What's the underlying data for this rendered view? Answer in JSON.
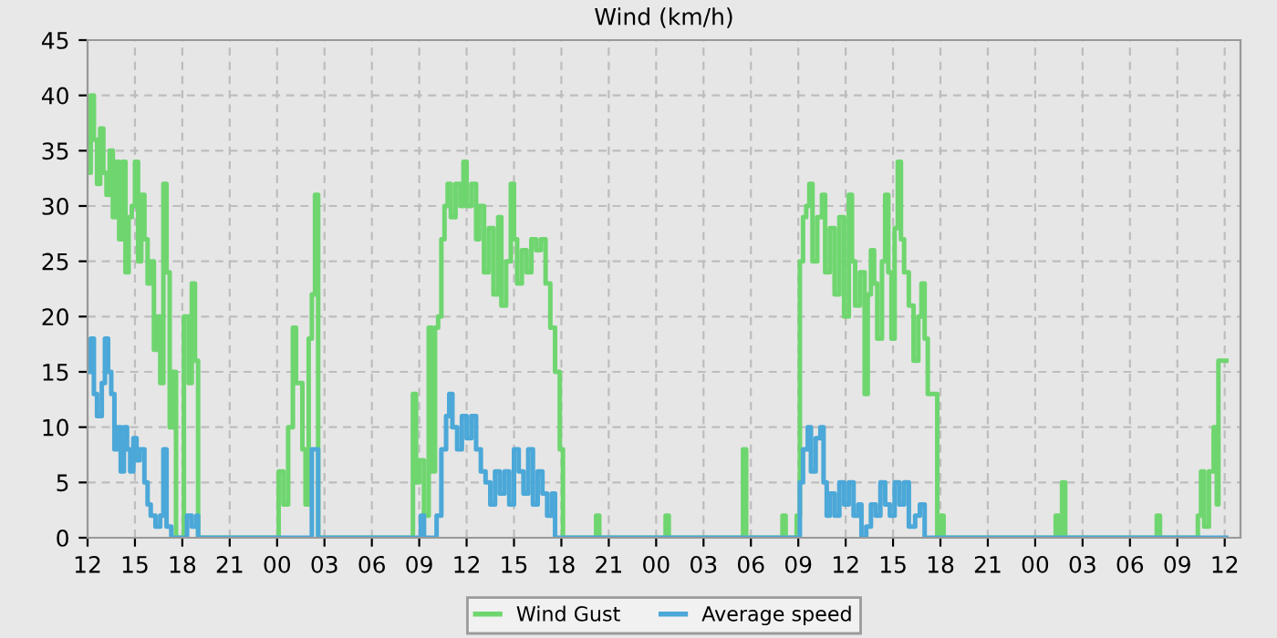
{
  "chart_data": {
    "type": "step",
    "title": "Wind (km/h)",
    "xlim": [
      12,
      85
    ],
    "ylim": [
      0,
      45
    ],
    "xticks": [
      12,
      15,
      18,
      21,
      {
        "value": 24,
        "label": "00"
      },
      {
        "value": 27,
        "label": "03"
      },
      {
        "value": 30,
        "label": "06"
      },
      {
        "value": 33,
        "label": "09"
      },
      {
        "value": 36,
        "label": "12"
      },
      {
        "value": 39,
        "label": "15"
      },
      {
        "value": 42,
        "label": "18"
      },
      {
        "value": 45,
        "label": "21"
      },
      {
        "value": 48,
        "label": "00"
      },
      {
        "value": 51,
        "label": "03"
      },
      {
        "value": 54,
        "label": "06"
      },
      {
        "value": 57,
        "label": "09"
      },
      {
        "value": 60,
        "label": "12"
      },
      {
        "value": 63,
        "label": "15"
      },
      {
        "value": 66,
        "label": "18"
      },
      {
        "value": 69,
        "label": "21"
      },
      {
        "value": 72,
        "label": "00"
      },
      {
        "value": 75,
        "label": "03"
      },
      {
        "value": 78,
        "label": "06"
      },
      {
        "value": 81,
        "label": "09"
      },
      {
        "value": 84,
        "label": "12"
      }
    ],
    "yticks": [
      0,
      5,
      10,
      15,
      20,
      25,
      30,
      35,
      40,
      45
    ],
    "grid": true,
    "legend": "bottom",
    "series": [
      {
        "name": "Wind Gust",
        "color": "#6fd66f",
        "x": [
          12,
          12.2,
          12.4,
          12.6,
          12.8,
          13.0,
          13.2,
          13.4,
          13.6,
          13.8,
          14.0,
          14.2,
          14.4,
          14.6,
          14.8,
          15.0,
          15.2,
          15.4,
          15.6,
          15.8,
          16.0,
          16.2,
          16.4,
          16.6,
          16.8,
          17.0,
          17.2,
          17.4,
          17.6,
          18.0,
          18.1,
          18.4,
          18.6,
          18.8,
          19.0,
          24.0,
          24.1,
          24.4,
          24.7,
          25.0,
          25.2,
          25.6,
          25.8,
          26.0,
          26.2,
          26.4,
          26.6,
          32.5,
          32.6,
          32.8,
          33.0,
          33.3,
          33.6,
          33.8,
          34.0,
          34.2,
          34.4,
          34.6,
          34.8,
          35.0,
          35.3,
          35.6,
          35.8,
          36.0,
          36.3,
          36.6,
          36.8,
          37.1,
          37.4,
          37.7,
          38.0,
          38.2,
          38.5,
          38.8,
          39.0,
          39.2,
          39.5,
          39.8,
          40.1,
          40.4,
          40.7,
          41.0,
          41.3,
          41.6,
          41.9,
          42.1,
          44.1,
          44.2,
          44.4,
          48.5,
          48.6,
          48.8,
          53.4,
          53.5,
          53.7,
          55.9,
          56.0,
          56.2,
          56.8,
          56.9,
          57.1,
          57.3,
          57.5,
          57.7,
          57.9,
          58.2,
          58.5,
          58.7,
          59.0,
          59.3,
          59.6,
          59.9,
          60.2,
          60.4,
          60.6,
          60.9,
          61.2,
          61.4,
          61.6,
          61.8,
          62.0,
          62.3,
          62.5,
          62.7,
          62.9,
          63.1,
          63.3,
          63.5,
          63.7,
          64.0,
          64.3,
          64.6,
          64.8,
          65.0,
          65.2,
          65.6,
          65.8,
          66.0,
          66.2,
          73.2,
          73.3,
          73.5,
          73.7,
          73.9,
          79.6,
          79.7,
          79.9,
          82.2,
          82.3,
          82.5,
          82.7,
          83.0,
          83.3,
          83.5,
          83.6,
          84.1
        ],
        "values": [
          33,
          40,
          36,
          32,
          37,
          33,
          31,
          35,
          29,
          34,
          27,
          34,
          24,
          29,
          30,
          34,
          25,
          31,
          27,
          23,
          25,
          17,
          20,
          14,
          32,
          24,
          10,
          15,
          0,
          0,
          20,
          14,
          23,
          16,
          0,
          0,
          6,
          3,
          10,
          19,
          14,
          8,
          3,
          18,
          22,
          31,
          0,
          0,
          13,
          5,
          7,
          2,
          19,
          6,
          19,
          20,
          27,
          30,
          32,
          29,
          32,
          30,
          34,
          30,
          32,
          27,
          30,
          24,
          28,
          22,
          29,
          21,
          25,
          32,
          27,
          23,
          26,
          24,
          27,
          26,
          27,
          23,
          19,
          15,
          8,
          0,
          0,
          2,
          0,
          0,
          2,
          0,
          0,
          8,
          0,
          0,
          2,
          0,
          0,
          2,
          25,
          29,
          30,
          32,
          25,
          29,
          31,
          24,
          28,
          22,
          29,
          20,
          31,
          25,
          21,
          24,
          13,
          22,
          26,
          23,
          18,
          25,
          31,
          24,
          18,
          28,
          34,
          27,
          24,
          21,
          16,
          20,
          23,
          18,
          13,
          13,
          0,
          2,
          0,
          0,
          2,
          0,
          5,
          0,
          0,
          2,
          0,
          0,
          2,
          6,
          1,
          6,
          10,
          3,
          16,
          16
        ]
      },
      {
        "name": "Average speed",
        "color": "#4ba8d8",
        "x": [
          12,
          12.2,
          12.4,
          12.6,
          12.9,
          13.1,
          13.3,
          13.5,
          13.7,
          13.9,
          14.1,
          14.3,
          14.5,
          14.7,
          14.9,
          15.1,
          15.3,
          15.6,
          15.8,
          16.0,
          16.3,
          16.6,
          16.8,
          17.0,
          17.3,
          18.2,
          18.3,
          18.6,
          18.9,
          19.0,
          26.1,
          26.2,
          26.6,
          33.0,
          33.1,
          33.3,
          34.0,
          34.1,
          34.4,
          34.7,
          34.9,
          35.1,
          35.4,
          35.7,
          36.0,
          36.3,
          36.6,
          36.9,
          37.2,
          37.5,
          37.8,
          38.1,
          38.4,
          38.7,
          39.0,
          39.3,
          39.6,
          39.9,
          40.2,
          40.5,
          40.8,
          41.1,
          41.4,
          41.6,
          57.0,
          57.1,
          57.3,
          57.6,
          57.8,
          58.1,
          58.4,
          58.6,
          58.8,
          59.0,
          59.3,
          59.6,
          59.9,
          60.2,
          60.5,
          60.8,
          61.0,
          61.3,
          61.6,
          61.9,
          62.2,
          62.5,
          62.8,
          63.1,
          63.4,
          63.7,
          64.0,
          64.4,
          64.7,
          65.0,
          84.1
        ],
        "values": [
          15,
          18,
          13,
          11,
          14,
          18,
          15,
          13,
          8,
          10,
          6,
          10,
          8,
          6,
          9,
          7,
          8,
          5,
          3,
          2,
          1,
          2,
          8,
          1,
          0,
          0,
          2,
          1,
          2,
          0,
          0,
          8,
          0,
          0,
          2,
          0,
          0,
          2,
          8,
          11,
          13,
          10,
          8,
          11,
          9,
          11,
          8,
          6,
          5,
          3,
          6,
          4,
          6,
          3,
          8,
          6,
          4,
          8,
          3,
          6,
          4,
          2,
          4,
          0,
          0,
          5,
          8,
          10,
          6,
          9,
          10,
          5,
          2,
          4,
          2,
          5,
          3,
          5,
          2,
          3,
          0,
          1,
          3,
          2,
          5,
          3,
          2,
          5,
          3,
          5,
          1,
          2,
          3,
          0,
          0
        ]
      }
    ]
  }
}
